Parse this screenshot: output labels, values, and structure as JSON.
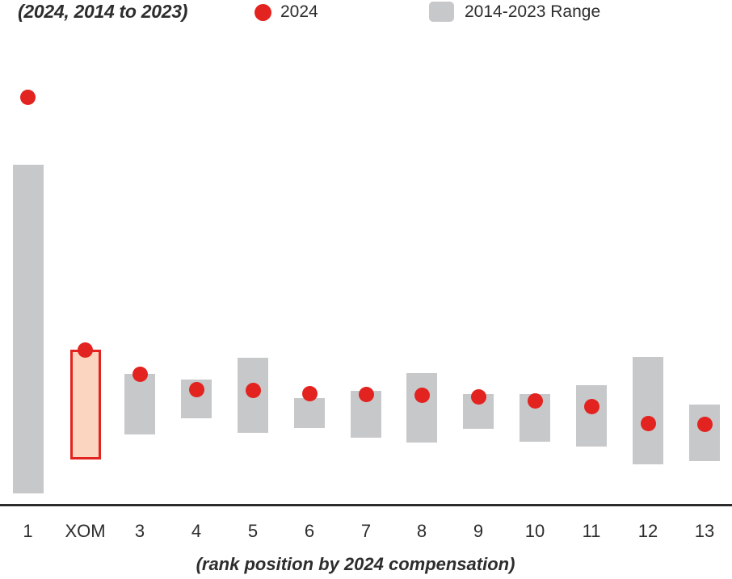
{
  "title": "(2024, 2014 to 2023)",
  "legend": {
    "dot_label": "2024",
    "range_label": "2014-2023 Range"
  },
  "caption": "(rank position by 2024 compensation)",
  "colors": {
    "red": "#e2231f",
    "highlight_fill": "#fbd5c0",
    "gray": "#c7c8ca",
    "axis": "#2b2b2b",
    "text": "#2d2d2d"
  },
  "chart_data": {
    "type": "dot-range",
    "title": "(2024, 2014 to 2023)",
    "xlabel": "(rank position by 2024 compensation)",
    "ylabel": "",
    "value_axis_note": "no numeric scale shown; values are relative heights above baseline in px",
    "legend": [
      "2024",
      "2014-2023 Range"
    ],
    "legend_position": "top",
    "grid": false,
    "categories": [
      "1",
      "XOM",
      "3",
      "4",
      "5",
      "6",
      "7",
      "8",
      "9",
      "10",
      "11",
      "12",
      "13"
    ],
    "points": [
      {
        "category": "1",
        "dot_2024": 505,
        "range_low": 14,
        "range_high": 421,
        "highlight": false
      },
      {
        "category": "XOM",
        "dot_2024": 192,
        "range_low": 56,
        "range_high": 192,
        "highlight": true
      },
      {
        "category": "3",
        "dot_2024": 162,
        "range_low": 87,
        "range_high": 162,
        "highlight": false
      },
      {
        "category": "4",
        "dot_2024": 143,
        "range_low": 107,
        "range_high": 155,
        "highlight": false
      },
      {
        "category": "5",
        "dot_2024": 142,
        "range_low": 89,
        "range_high": 182,
        "highlight": false
      },
      {
        "category": "6",
        "dot_2024": 138,
        "range_low": 95,
        "range_high": 132,
        "highlight": false
      },
      {
        "category": "7",
        "dot_2024": 137,
        "range_low": 83,
        "range_high": 141,
        "highlight": false
      },
      {
        "category": "8",
        "dot_2024": 136,
        "range_low": 77,
        "range_high": 163,
        "highlight": false
      },
      {
        "category": "9",
        "dot_2024": 134,
        "range_low": 94,
        "range_high": 137,
        "highlight": false
      },
      {
        "category": "10",
        "dot_2024": 129,
        "range_low": 78,
        "range_high": 137,
        "highlight": false
      },
      {
        "category": "11",
        "dot_2024": 122,
        "range_low": 72,
        "range_high": 148,
        "highlight": false
      },
      {
        "category": "12",
        "dot_2024": 101,
        "range_low": 50,
        "range_high": 183,
        "highlight": false
      },
      {
        "category": "13",
        "dot_2024": 100,
        "range_low": 54,
        "range_high": 124,
        "highlight": false
      }
    ]
  }
}
